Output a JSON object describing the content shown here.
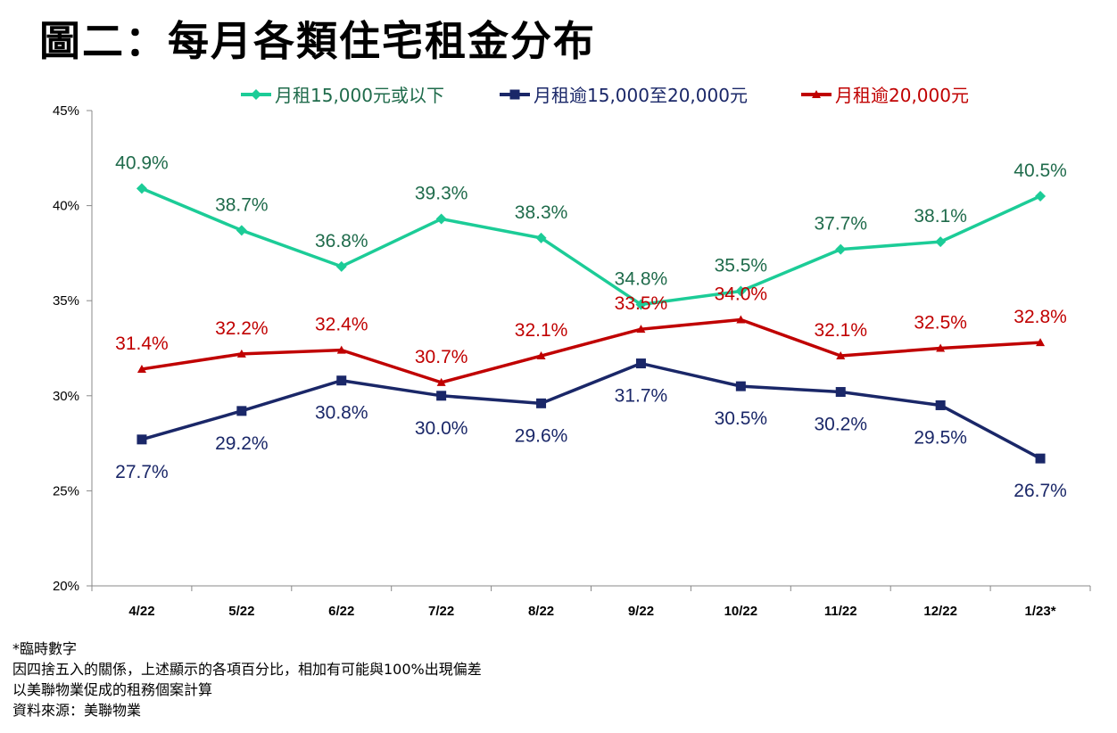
{
  "chart_data": {
    "type": "line",
    "title": "圖二：每月各類住宅租金分布",
    "categories": [
      "4/22",
      "5/22",
      "6/22",
      "7/22",
      "8/22",
      "9/22",
      "10/22",
      "11/22",
      "12/22",
      "1/23*"
    ],
    "ylim": [
      20,
      45
    ],
    "yticks": [
      20,
      25,
      30,
      35,
      40,
      45
    ],
    "ytick_labels": [
      "20%",
      "25%",
      "30%",
      "35%",
      "40%",
      "45%"
    ],
    "grid": false,
    "legend_placement": "top",
    "series": [
      {
        "name": "月租15,000元或以下",
        "color": "#1ccc97",
        "label_color": "#1f6b4b",
        "marker": "diamond",
        "label_pos": "above",
        "values": [
          40.9,
          38.7,
          36.8,
          39.3,
          38.3,
          34.8,
          35.5,
          37.7,
          38.1,
          40.5
        ],
        "labels": [
          "40.9%",
          "38.7%",
          "36.8%",
          "39.3%",
          "38.3%",
          "34.8%",
          "35.5%",
          "37.7%",
          "38.1%",
          "40.5%"
        ]
      },
      {
        "name": "月租逾15,000至20,000元",
        "color": "#1a2768",
        "label_color": "#1a2768",
        "marker": "square",
        "label_pos": "below",
        "values": [
          27.7,
          29.2,
          30.8,
          30.0,
          29.6,
          31.7,
          30.5,
          30.2,
          29.5,
          26.7
        ],
        "labels": [
          "27.7%",
          "29.2%",
          "30.8%",
          "30.0%",
          "29.6%",
          "31.7%",
          "30.5%",
          "30.2%",
          "29.5%",
          "26.7%"
        ]
      },
      {
        "name": "月租逾20,000元",
        "color": "#c00000",
        "label_color": "#c00000",
        "marker": "triangle",
        "label_pos": "above",
        "values": [
          31.4,
          32.2,
          32.4,
          30.7,
          32.1,
          33.5,
          34.0,
          32.1,
          32.5,
          32.8
        ],
        "labels": [
          "31.4%",
          "32.2%",
          "32.4%",
          "30.7%",
          "32.1%",
          "33.5%",
          "34.0%",
          "32.1%",
          "32.5%",
          "32.8%"
        ]
      }
    ]
  },
  "notes": [
    "*臨時數字",
    "因四捨五入的關係，上述顯示的各項百分比，相加有可能與100%出現偏差",
    "以美聯物業促成的租務個案計算",
    "資料來源：美聯物業"
  ]
}
